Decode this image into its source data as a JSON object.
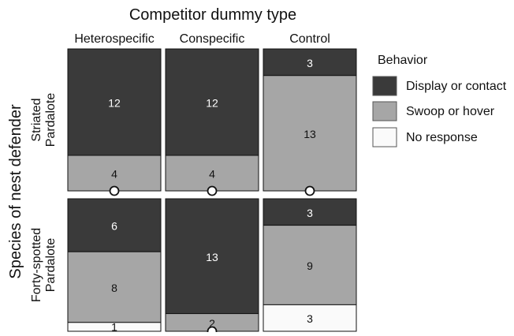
{
  "chart_data": {
    "type": "mosaic",
    "title": "Competitor dummy type",
    "ylabel": "Species of nest defender",
    "columns": [
      "Heterospecific",
      "Conspecific",
      "Control"
    ],
    "rows": [
      "Striated\nPardalote",
      "Forty-spotted\nPardalote"
    ],
    "legend": {
      "title": "Behavior",
      "position": "right",
      "items": [
        {
          "label": "Display or contact",
          "color": "#3a3a3a"
        },
        {
          "label": "Swoop or hover",
          "color": "#a6a6a6"
        },
        {
          "label": "No response",
          "color": "#fafafa"
        }
      ]
    },
    "categories": [
      "Display or contact",
      "Swoop or hover",
      "No response"
    ],
    "counts": [
      [
        {
          "display": 12,
          "swoop": 4,
          "none": 0
        },
        {
          "display": 12,
          "swoop": 4,
          "none": 0
        },
        {
          "display": 3,
          "swoop": 13,
          "none": 0
        }
      ],
      [
        {
          "display": 6,
          "swoop": 8,
          "none": 1
        },
        {
          "display": 13,
          "swoop": 2,
          "none": 0
        },
        {
          "display": 3,
          "swoop": 9,
          "none": 3
        }
      ]
    ],
    "zero_marker": "circle"
  }
}
